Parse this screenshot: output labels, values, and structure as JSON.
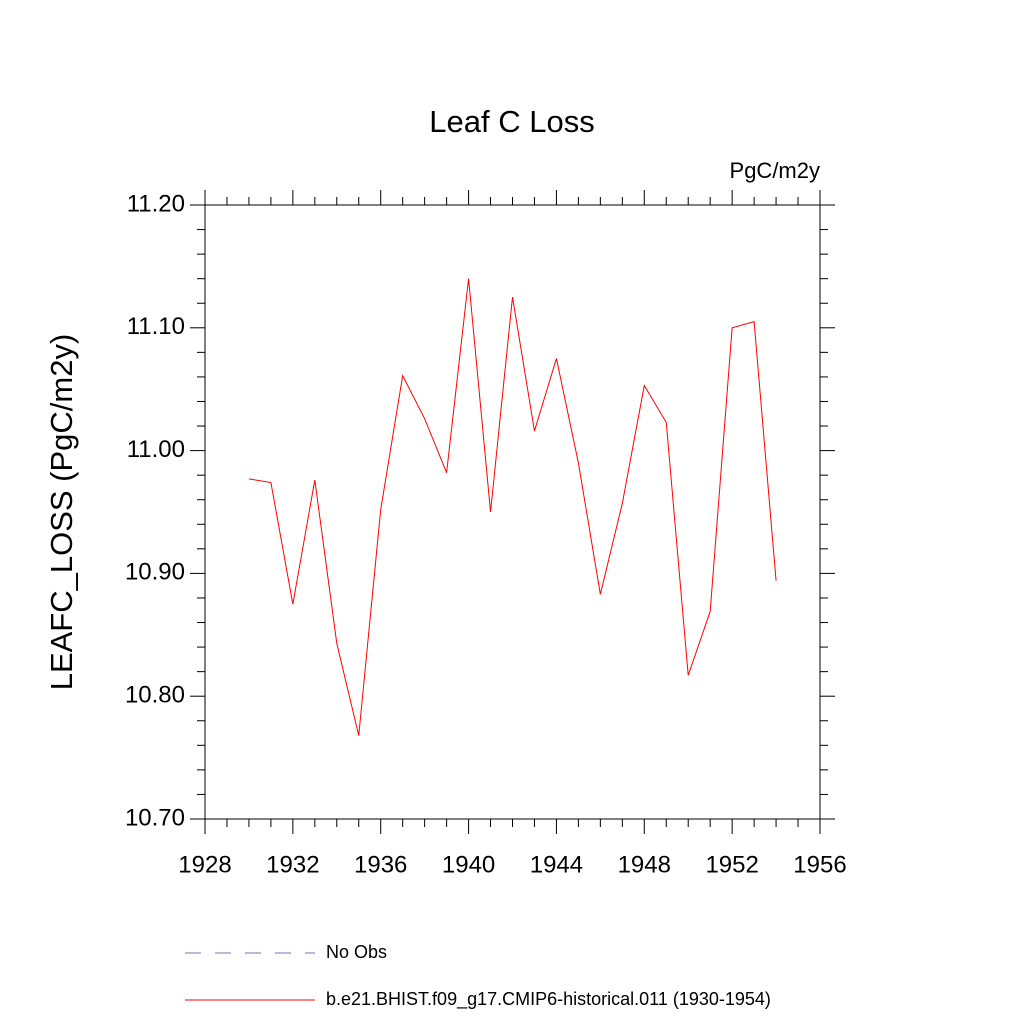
{
  "chart_data": {
    "type": "line",
    "title": "Leaf C Loss",
    "units": "PgC/m2y",
    "y_label": "LEAFC_LOSS  (PgC/m2y)",
    "x": [
      1930,
      1931,
      1932,
      1933,
      1934,
      1935,
      1936,
      1937,
      1938,
      1939,
      1940,
      1941,
      1942,
      1943,
      1944,
      1945,
      1946,
      1947,
      1948,
      1949,
      1950,
      1951,
      1952,
      1953,
      1954
    ],
    "series": [
      {
        "name": "b.e21.BHIST.f09_g17.CMIP6-historical.011 (1930-1954)",
        "color": "#ff0000",
        "values": [
          10.977,
          10.974,
          10.875,
          10.976,
          10.843,
          10.768,
          10.952,
          11.061,
          11.026,
          10.982,
          11.14,
          10.95,
          11.125,
          11.016,
          11.075,
          10.99,
          10.883,
          10.957,
          11.053,
          11.023,
          10.817,
          10.869,
          11.1,
          11.105,
          10.894
        ]
      }
    ],
    "reference_lines": [
      {
        "name": "No Obs",
        "color": "#7070c0",
        "style": "dashed"
      }
    ],
    "xlim": [
      1928,
      1956
    ],
    "xticks": [
      1928,
      1932,
      1936,
      1940,
      1944,
      1948,
      1952,
      1956
    ],
    "ylim": [
      10.7,
      11.2
    ],
    "yticks": [
      {
        "value": 10.7,
        "label": "10.70"
      },
      {
        "value": 10.8,
        "label": "10.80"
      },
      {
        "value": 10.9,
        "label": "10.90"
      },
      {
        "value": 11.0,
        "label": "11.00"
      },
      {
        "value": 11.1,
        "label": "11.10"
      },
      {
        "value": 11.2,
        "label": "11.20"
      }
    ],
    "grid": false
  }
}
